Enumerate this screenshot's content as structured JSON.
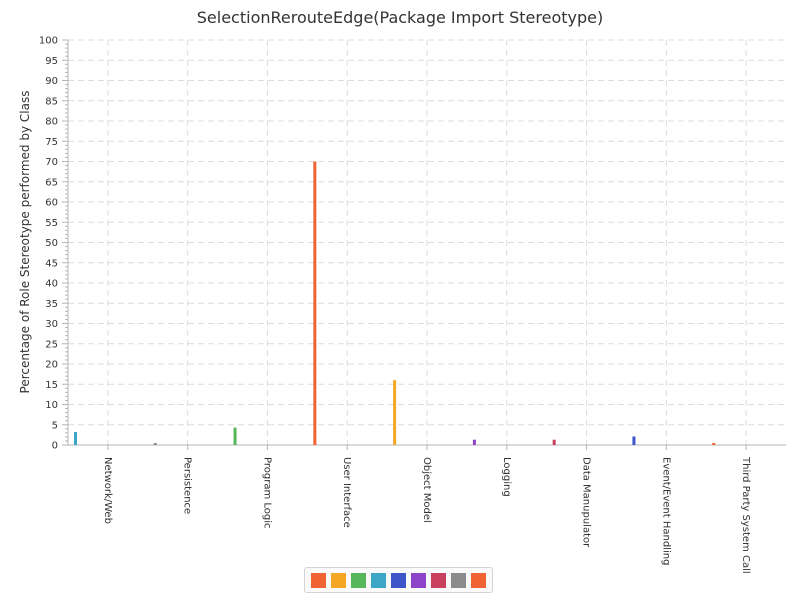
{
  "chart_data": {
    "type": "bar",
    "title": "SelectionRerouteEdge(Package Import Stereotype)",
    "ylabel": "Percentage of Role Stereotype performed by Class",
    "xlabel": "",
    "ylim": [
      0,
      100
    ],
    "y_major_step": 5,
    "y_minor_step": 1,
    "grid": true,
    "legend_placement": "bottom-center",
    "categories": [
      "Network/Web",
      "Persistence",
      "Program Logic",
      "User Interface",
      "Object Model",
      "Logging",
      "Data Manupulator",
      "Event/Event Handling",
      "Third Party System Call"
    ],
    "values": [
      3.2,
      0.5,
      4.3,
      70.0,
      16.0,
      1.3,
      1.3,
      2.1,
      0.5
    ],
    "bar_colors": [
      "#3ba6c6",
      "#8c8c8c",
      "#56b65a",
      "#f06332",
      "#f5a623",
      "#8e44c8",
      "#c8405e",
      "#3e54c9",
      "#f06332"
    ],
    "legend_colors": [
      "#f06332",
      "#f5a623",
      "#56b65a",
      "#3ba6c6",
      "#3e54c9",
      "#8e44c8",
      "#c8405e",
      "#8c8c8c",
      "#f06332"
    ]
  }
}
